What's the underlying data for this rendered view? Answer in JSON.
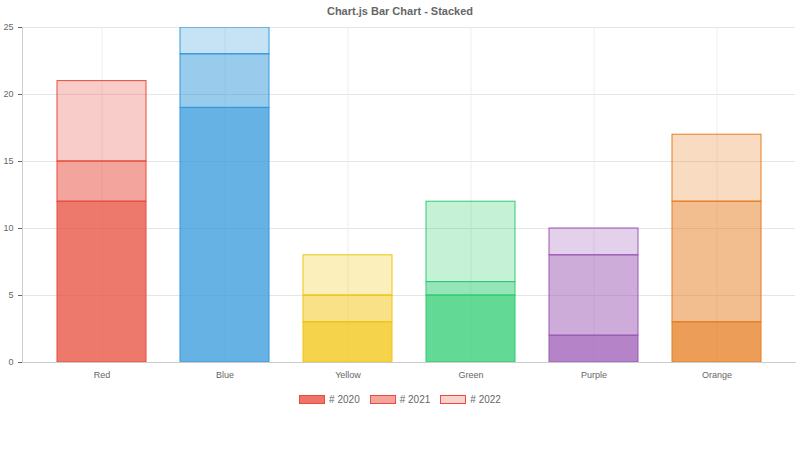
{
  "chart_data": {
    "type": "bar",
    "title": "Chart.js Bar Chart - Stacked",
    "categories": [
      "Red",
      "Blue",
      "Yellow",
      "Green",
      "Purple",
      "Orange"
    ],
    "colors": [
      "#e74c3c",
      "#3498db",
      "#f1c40f",
      "#2ecc71",
      "#9b59b6",
      "#e67e22"
    ],
    "series": [
      {
        "name": "# 2020",
        "color": "#ee7467",
        "values": [
          12,
          19,
          3,
          5,
          2,
          3
        ]
      },
      {
        "name": "# 2021",
        "color": "#f3a59d",
        "values": [
          3,
          4,
          2,
          1,
          6,
          9
        ]
      },
      {
        "name": "# 2022",
        "color": "#f9d2ce",
        "values": [
          6,
          2,
          3,
          6,
          2,
          5
        ]
      }
    ],
    "stacked": true,
    "ylim": [
      0,
      25
    ],
    "yticks": [
      0,
      5,
      10,
      15,
      20,
      25
    ],
    "grid": true,
    "legend": "bottom"
  }
}
